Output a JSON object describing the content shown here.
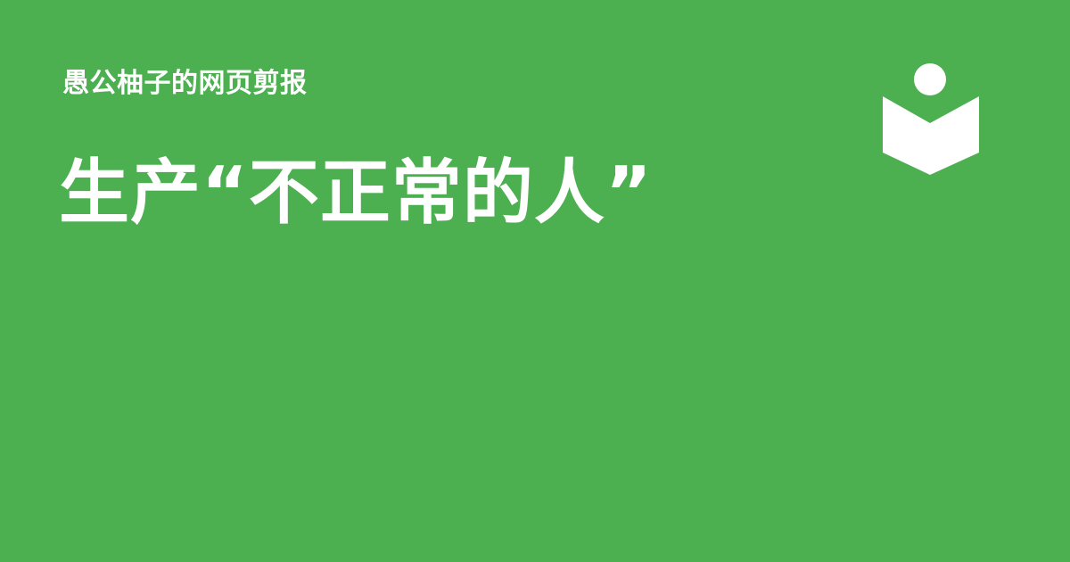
{
  "site": {
    "name": "愚公柚子的网页剪报"
  },
  "article": {
    "title": "生产“不正常的人”"
  },
  "logo": {
    "icon": "reader-book-icon",
    "color": "#ffffff"
  },
  "theme": {
    "background": "#4caf50",
    "text": "#ffffff"
  }
}
